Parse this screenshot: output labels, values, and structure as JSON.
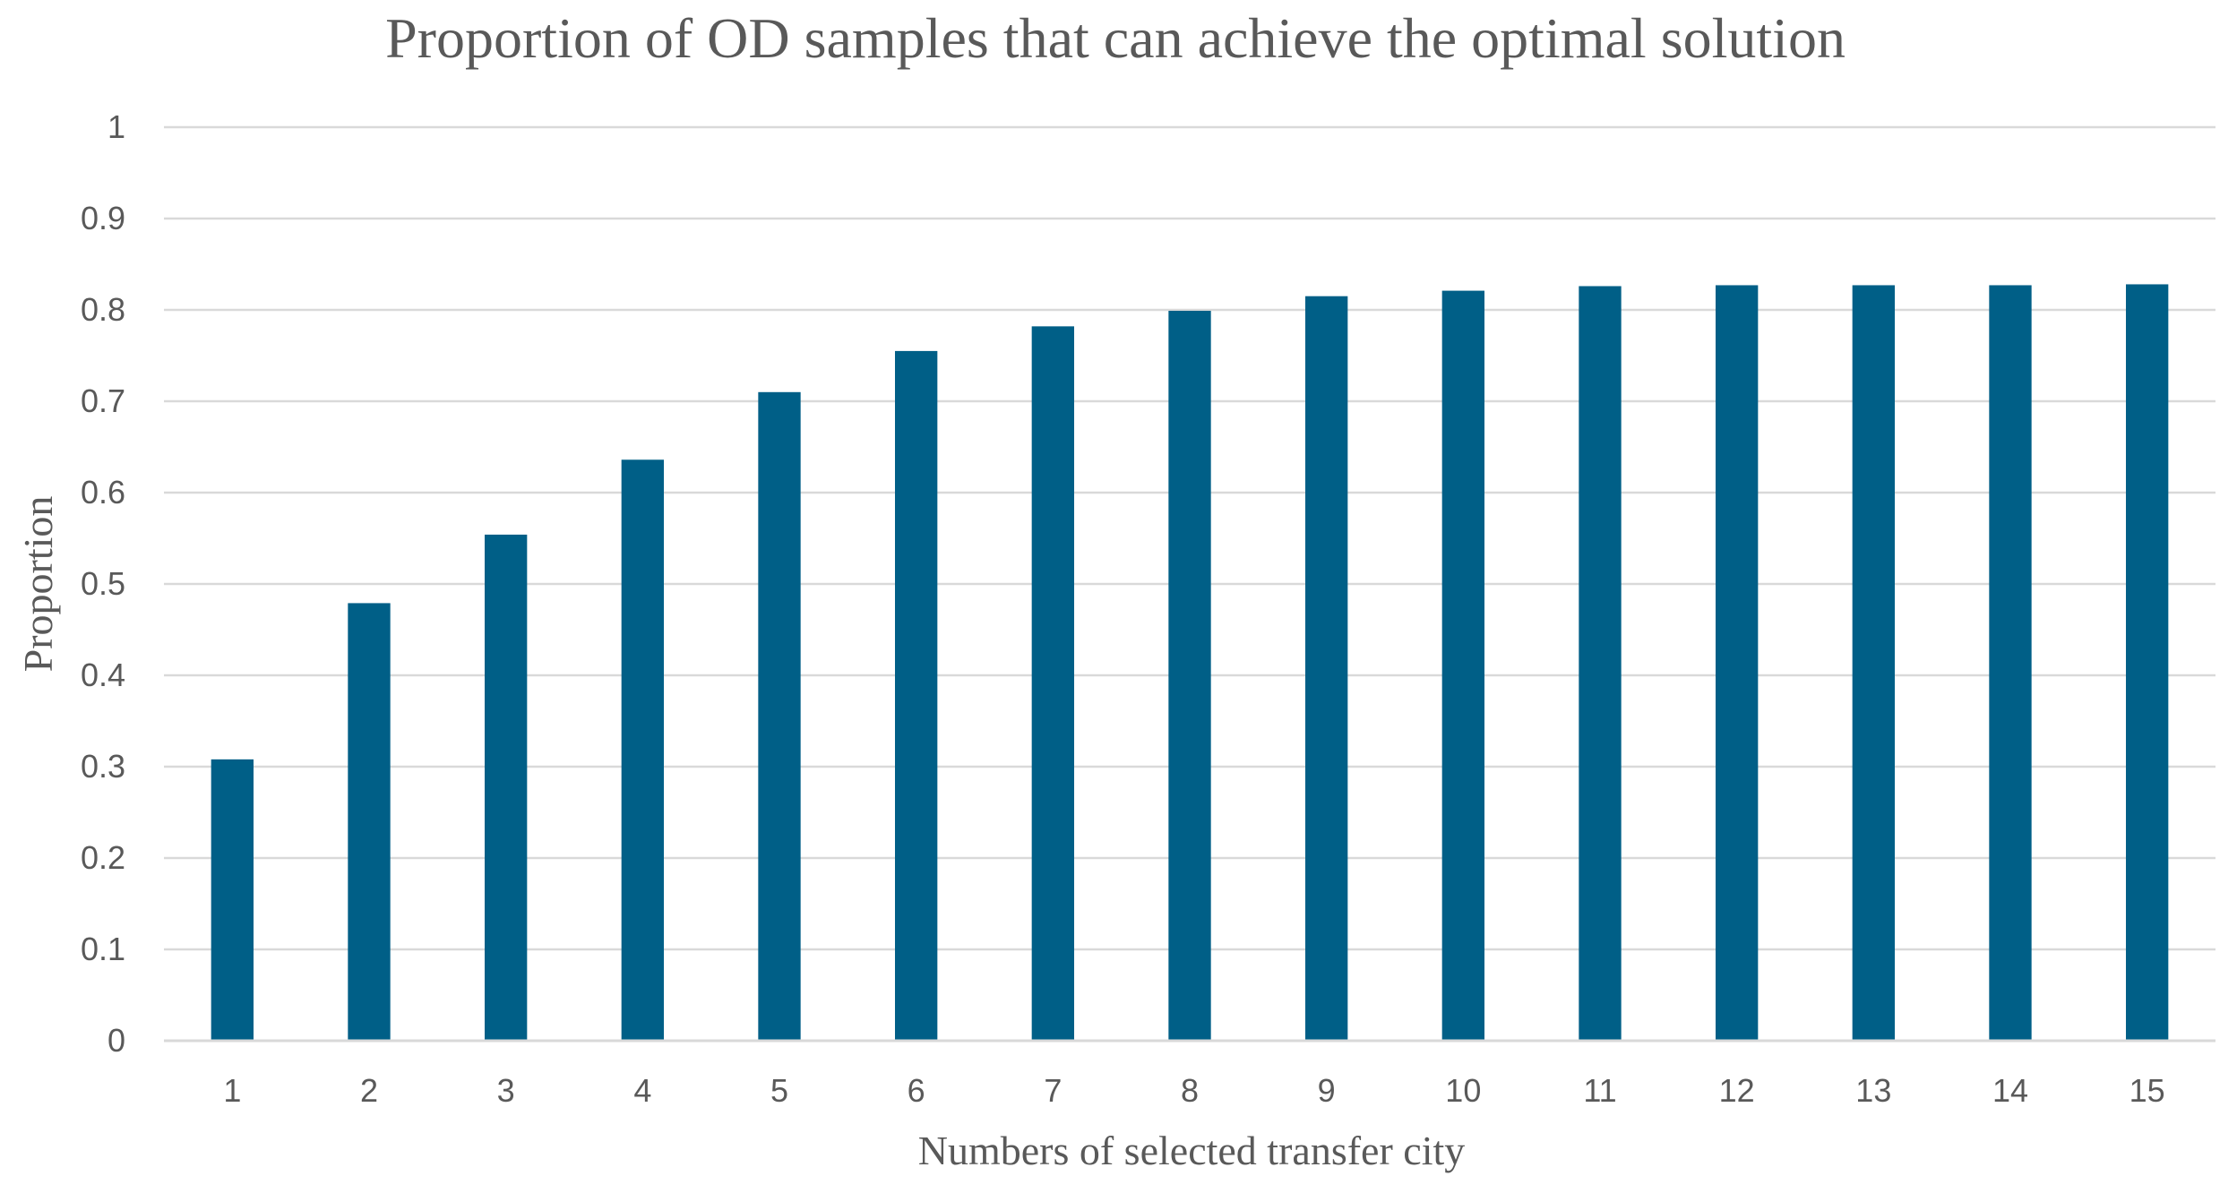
{
  "chart_data": {
    "type": "bar",
    "title": "Proportion of OD samples that can achieve the optimal solution",
    "xlabel": "Numbers of selected transfer city",
    "ylabel": "Proportion",
    "categories": [
      "1",
      "2",
      "3",
      "4",
      "5",
      "6",
      "7",
      "8",
      "9",
      "10",
      "11",
      "12",
      "13",
      "14",
      "15"
    ],
    "series": [
      {
        "name": "Proportion",
        "values": [
          0.308,
          0.479,
          0.554,
          0.636,
          0.71,
          0.755,
          0.782,
          0.799,
          0.815,
          0.821,
          0.826,
          0.827,
          0.827,
          0.827,
          0.828
        ]
      }
    ],
    "ylim": [
      0,
      1
    ],
    "yticks": [
      0,
      0.1,
      0.2,
      0.3,
      0.4,
      0.5,
      0.6,
      0.7,
      0.8,
      0.9,
      1
    ],
    "ytick_labels": [
      "0",
      "0.1",
      "0.2",
      "0.3",
      "0.4",
      "0.5",
      "0.6",
      "0.7",
      "0.8",
      "0.9",
      "1"
    ],
    "grid": true,
    "legend": "none",
    "bar_color": "#005F87"
  }
}
